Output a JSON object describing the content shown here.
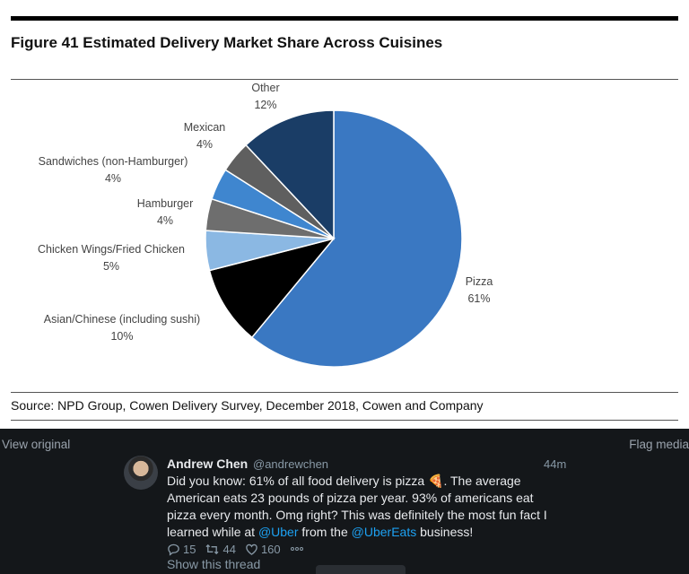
{
  "figure": {
    "title": "Figure 41 Estimated Delivery Market Share Across Cuisines",
    "source": "Source: NPD Group, Cowen Delivery Survey, December 2018, Cowen and Company"
  },
  "chart_data": {
    "type": "pie",
    "title": "Figure 41 Estimated Delivery Market Share Across Cuisines",
    "slices": [
      {
        "name": "Pizza",
        "value": 61,
        "label": "61%",
        "color": "#3a78c2"
      },
      {
        "name": "Asian/Chinese (including sushi)",
        "value": 10,
        "label": "10%",
        "color": "#000000"
      },
      {
        "name": "Chicken Wings/Fried Chicken",
        "value": 5,
        "label": "5%",
        "color": "#8bb8e3"
      },
      {
        "name": "Hamburger",
        "value": 4,
        "label": "4%",
        "color": "#6e6e6e"
      },
      {
        "name": "Sandwiches (non-Hamburger)",
        "value": 4,
        "label": "4%",
        "color": "#3f86cf"
      },
      {
        "name": "Mexican",
        "value": 4,
        "label": "4%",
        "color": "#5f5f5f"
      },
      {
        "name": "Other",
        "value": 12,
        "label": "12%",
        "color": "#1a3d66"
      }
    ]
  },
  "viewer": {
    "view_original": "View original",
    "flag_media": "Flag media"
  },
  "tweet": {
    "name": "Andrew Chen",
    "handle": "@andrewchen",
    "time": "44m",
    "text_1": "Did you know: 61% of all food delivery is pizza 🍕. The average American eats 23 pounds of pizza per year. 93% of americans eat pizza every month. Omg right? This was definitely the most fun fact I learned while at ",
    "mention_1": "@Uber",
    "text_2": " from the ",
    "mention_2": "@UberEats",
    "text_3": " business!",
    "replies": "15",
    "retweets": "44",
    "likes": "160",
    "show_thread": "Show this thread",
    "icons": [
      "reply-icon",
      "retweet-icon",
      "like-icon",
      "more-icon"
    ]
  }
}
